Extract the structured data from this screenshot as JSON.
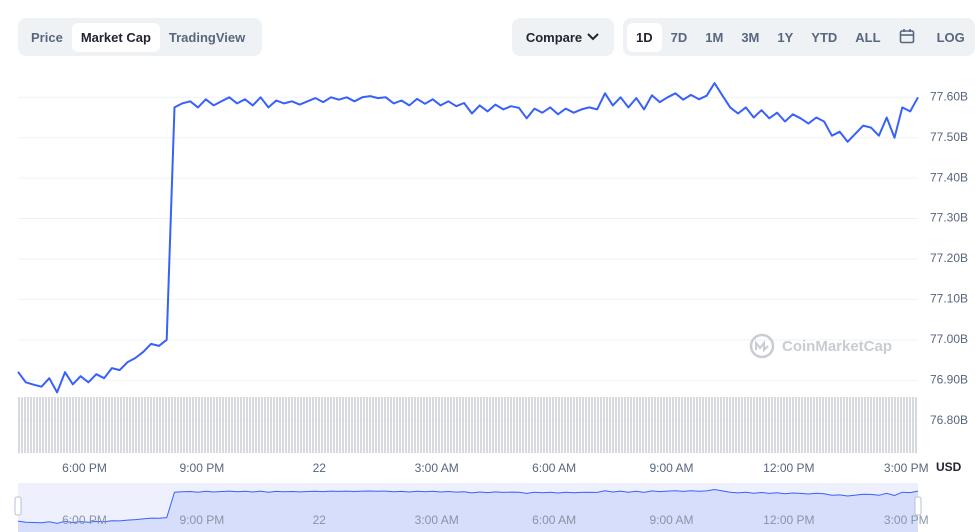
{
  "toolbar": {
    "tabs": [
      "Price",
      "Market Cap",
      "TradingView"
    ],
    "compare": "Compare",
    "ranges": [
      "1D",
      "7D",
      "1M",
      "3M",
      "1Y",
      "YTD",
      "ALL"
    ],
    "log": "LOG"
  },
  "watermark": "CoinMarketCap",
  "chart_data": {
    "type": "line",
    "color": "#3861fb",
    "unit_label": "USD",
    "x": [
      16.3,
      16.5,
      16.7,
      16.9,
      17.1,
      17.3,
      17.5,
      17.7,
      17.9,
      18.1,
      18.3,
      18.5,
      18.7,
      18.9,
      19.1,
      19.3,
      19.5,
      19.7,
      19.9,
      20.1,
      20.3,
      20.5,
      20.7,
      20.9,
      21.1,
      21.3,
      21.5,
      21.7,
      21.9,
      22.1,
      22.3,
      22.5,
      22.7,
      22.9,
      23.1,
      23.3,
      23.5,
      23.7,
      23.9,
      24.1,
      24.3,
      24.5,
      24.7,
      24.9,
      25.1,
      25.3,
      25.5,
      25.7,
      25.9,
      26.1,
      26.3,
      26.5,
      26.7,
      26.9,
      27.1,
      27.3,
      27.5,
      27.7,
      27.9,
      28.1,
      28.3,
      28.5,
      28.7,
      28.9,
      29.1,
      29.3,
      29.5,
      29.7,
      29.9,
      30.1,
      30.3,
      30.5,
      30.7,
      30.9,
      31.1,
      31.3,
      31.5,
      31.7,
      31.9,
      32.1,
      32.3,
      32.5,
      32.7,
      32.9,
      33.1,
      33.3,
      33.5,
      33.7,
      33.9,
      34.1,
      34.3,
      34.5,
      34.7,
      34.9,
      35.1,
      35.3,
      35.5,
      35.7,
      35.9,
      36.1,
      36.3,
      36.5,
      36.7,
      36.9,
      37.1,
      37.3,
      37.5,
      37.7,
      37.9,
      38.1,
      38.3,
      38.5,
      38.7,
      38.9,
      39.1,
      39.3
    ],
    "values": [
      76.921,
      76.895,
      76.889,
      76.884,
      76.905,
      76.87,
      76.92,
      76.89,
      76.91,
      76.895,
      76.915,
      76.905,
      76.93,
      76.925,
      76.945,
      76.955,
      76.97,
      76.99,
      76.985,
      77.0,
      77.575,
      77.585,
      77.59,
      77.575,
      77.595,
      77.58,
      77.59,
      77.6,
      77.585,
      77.595,
      77.58,
      77.6,
      77.575,
      77.592,
      77.585,
      77.59,
      77.582,
      77.59,
      77.598,
      77.588,
      77.6,
      77.594,
      77.6,
      77.59,
      77.6,
      77.603,
      77.598,
      77.6,
      77.585,
      77.592,
      77.58,
      77.596,
      77.584,
      77.595,
      77.58,
      77.59,
      77.578,
      77.586,
      77.56,
      77.58,
      77.565,
      77.582,
      77.57,
      77.578,
      77.574,
      77.548,
      77.572,
      77.562,
      77.575,
      77.558,
      77.572,
      77.562,
      77.57,
      77.575,
      77.57,
      77.61,
      77.58,
      77.6,
      77.575,
      77.598,
      77.57,
      77.605,
      77.588,
      77.6,
      77.61,
      77.594,
      77.606,
      77.595,
      77.604,
      77.635,
      77.605,
      77.575,
      77.56,
      77.575,
      77.55,
      77.568,
      77.548,
      77.562,
      77.54,
      77.558,
      77.548,
      77.535,
      77.55,
      77.54,
      77.505,
      77.515,
      77.49,
      77.51,
      77.53,
      77.525,
      77.505,
      77.55,
      77.5,
      77.575,
      77.565,
      77.6
    ],
    "xlim": [
      16.3,
      39.3
    ],
    "xticks": [
      {
        "value": 18,
        "label": "6:00 PM"
      },
      {
        "value": 21,
        "label": "9:00 PM"
      },
      {
        "value": 24,
        "label": "22"
      },
      {
        "value": 27,
        "label": "3:00 AM"
      },
      {
        "value": 30,
        "label": "6:00 AM"
      },
      {
        "value": 33,
        "label": "9:00 AM"
      },
      {
        "value": 36,
        "label": "12:00 PM"
      },
      {
        "value": 39,
        "label": "3:00 PM"
      }
    ],
    "ylim": [
      76.72,
      77.67
    ],
    "yticks": [
      {
        "value": 76.8,
        "label": "76.80B"
      },
      {
        "value": 76.9,
        "label": "76.90B"
      },
      {
        "value": 77.0,
        "label": "77.00B"
      },
      {
        "value": 77.1,
        "label": "77.10B"
      },
      {
        "value": 77.2,
        "label": "77.20B"
      },
      {
        "value": 77.3,
        "label": "77.30B"
      },
      {
        "value": 77.4,
        "label": "77.40B"
      },
      {
        "value": 77.5,
        "label": "77.50B"
      },
      {
        "value": 77.6,
        "label": "77.60B"
      }
    ],
    "grid": true
  }
}
